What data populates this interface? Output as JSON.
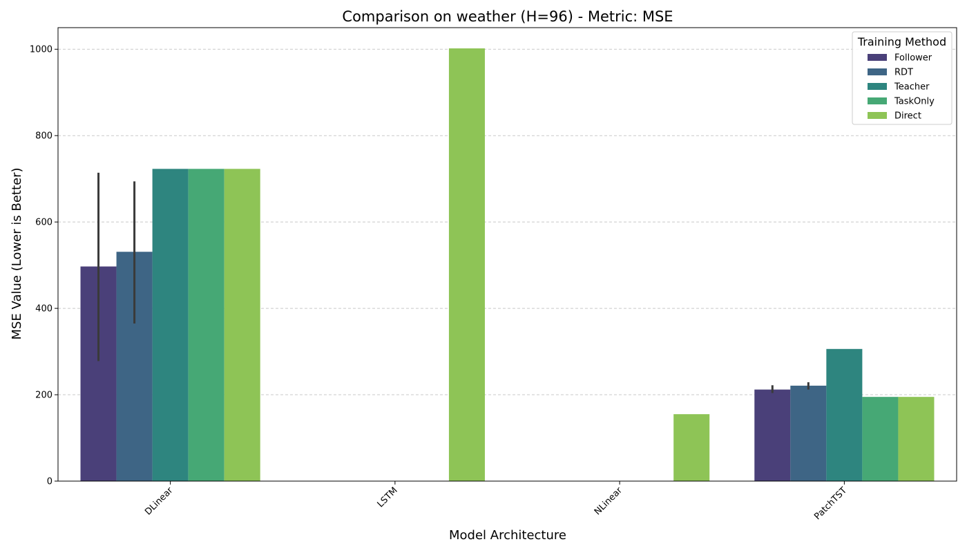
{
  "chart_data": {
    "type": "bar",
    "title": "Comparison on weather (H=96) - Metric: MSE",
    "xlabel": "Model Architecture",
    "ylabel": "MSE Value (Lower is Better)",
    "categories": [
      "DLinear",
      "LSTM",
      "NLinear",
      "PatchTST"
    ],
    "ylim": [
      0,
      1050
    ],
    "yticks": [
      0,
      200,
      400,
      600,
      800,
      1000
    ],
    "grid": "y-dashed",
    "legend": {
      "title": "Training Method",
      "placement": "top-right"
    },
    "series": [
      {
        "name": "Follower",
        "color": "#4a4079",
        "values": [
          497,
          null,
          null,
          212
        ],
        "err_low": [
          278,
          null,
          null,
          204
        ],
        "err_high": [
          714,
          null,
          null,
          222
        ]
      },
      {
        "name": "RDT",
        "color": "#3e6585",
        "values": [
          531,
          null,
          null,
          221
        ],
        "err_low": [
          365,
          null,
          null,
          212
        ],
        "err_high": [
          694,
          null,
          null,
          229
        ]
      },
      {
        "name": "Teacher",
        "color": "#2e857f",
        "values": [
          723,
          null,
          null,
          306
        ]
      },
      {
        "name": "TaskOnly",
        "color": "#46a875",
        "values": [
          723,
          null,
          null,
          195
        ]
      },
      {
        "name": "Direct",
        "color": "#8ec456",
        "values": [
          723,
          1002,
          155,
          195
        ]
      }
    ]
  }
}
